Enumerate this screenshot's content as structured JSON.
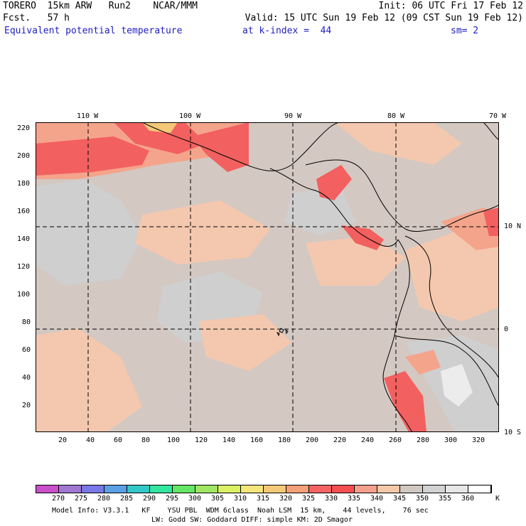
{
  "header": {
    "line1_left": "TORERO  15km ARW   Run2    NCAR/MMM",
    "line1_right": "Init: 06 UTC Fri 17 Feb 12",
    "line2_left": "Fcst.   57 h",
    "line2_right": "Valid: 15 UTC Sun 19 Feb 12 (09 CST Sun 19 Feb 12)",
    "line3_field": "Equivalent potential temperature",
    "line3_level": "at k-index =  44",
    "line3_sm": "sm= 2"
  },
  "top_lon_labels": [
    "110 W",
    "100 W",
    "90 W",
    "80 W",
    "70 W"
  ],
  "right_lat_labels": [
    "10 N",
    "0",
    "10 S"
  ],
  "y_ticks": [
    "220",
    "200",
    "180",
    "160",
    "140",
    "120",
    "100",
    "80",
    "60",
    "40",
    "20"
  ],
  "x_ticks": [
    "20",
    "40",
    "60",
    "80",
    "100",
    "120",
    "140",
    "160",
    "180",
    "200",
    "220",
    "240",
    "260",
    "280",
    "300",
    "320"
  ],
  "colorbar": {
    "labels": [
      "270",
      "275",
      "280",
      "285",
      "290",
      "295",
      "300",
      "305",
      "310",
      "315",
      "320",
      "325",
      "330",
      "335",
      "340",
      "345",
      "350",
      "355",
      "360"
    ],
    "unit": "K",
    "colors": [
      "#c850c8",
      "#a078d2",
      "#7878e6",
      "#5aa0e6",
      "#32c8c8",
      "#32e6a0",
      "#64e664",
      "#a0e664",
      "#dcf064",
      "#f5e67c",
      "#f5c878",
      "#f5a078",
      "#f56464",
      "#f55050",
      "#f5a08c",
      "#f5c8aa",
      "#d2c8c2",
      "#d2d2d2",
      "#e6e6e6",
      "#ffffff"
    ]
  },
  "footer": {
    "line1": "Model Info: V3.3.1   KF    YSU PBL  WDM 6class  Noah LSM  15 km,    44 levels,    76 sec",
    "line2": "LW: Godd SW: Goddard DIFF: simple KM: 2D Smagor"
  }
}
